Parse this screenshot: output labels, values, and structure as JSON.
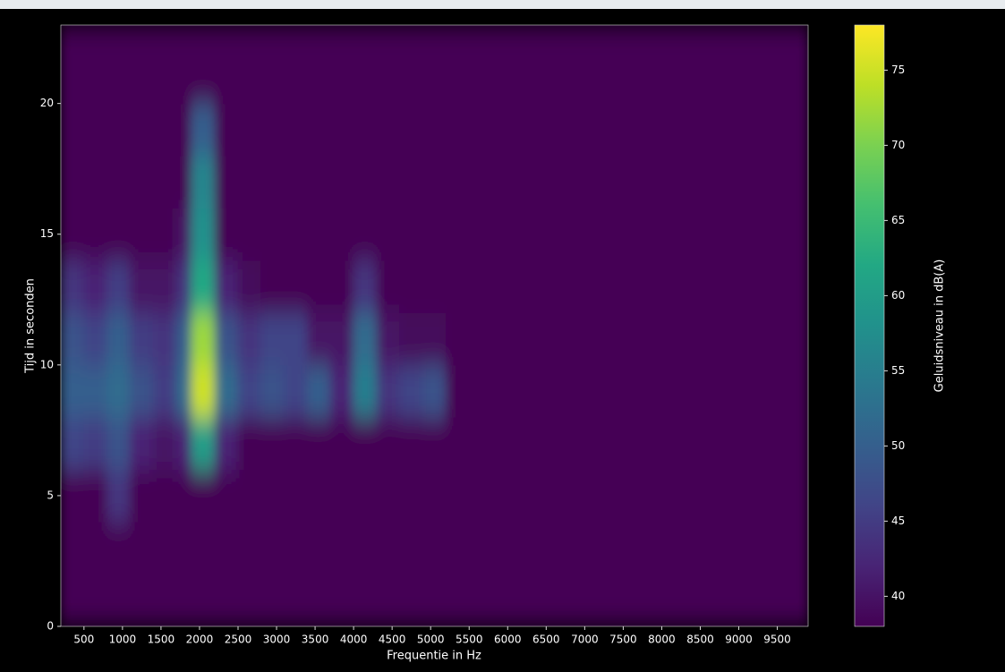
{
  "chart_data": {
    "type": "heatmap",
    "x_label": "Frequentie in Hz",
    "y_label": "Tijd in seconden",
    "colorbar_label": "Geluidsniveau in dB(A)",
    "colormap": "viridis",
    "xbins": [
      200,
      500,
      800,
      1100,
      1400,
      1700,
      1900,
      2200,
      2500,
      2800,
      3100,
      3400,
      3700,
      4000,
      4300,
      4600,
      4900,
      5200,
      5500,
      9900
    ],
    "ybins": [
      0,
      2,
      4,
      6,
      8,
      10,
      12,
      14,
      16,
      18,
      20,
      22,
      23
    ],
    "z": [
      [
        38,
        38,
        38,
        38,
        38,
        38,
        38,
        38,
        38,
        38,
        38,
        38,
        38,
        38,
        38,
        38,
        38,
        38,
        38
      ],
      [
        38,
        38,
        38,
        38,
        38,
        38,
        38,
        38,
        38,
        38,
        38,
        38,
        38,
        38,
        38,
        38,
        38,
        38,
        38
      ],
      [
        38,
        38,
        44,
        38,
        38,
        38,
        38,
        38,
        38,
        38,
        38,
        38,
        38,
        38,
        38,
        38,
        38,
        38,
        38
      ],
      [
        46,
        45,
        48,
        42,
        40,
        42,
        60,
        42,
        38,
        38,
        38,
        38,
        38,
        38,
        38,
        38,
        38,
        38,
        38
      ],
      [
        50,
        50,
        52,
        48,
        45,
        52,
        75,
        52,
        46,
        48,
        46,
        50,
        42,
        55,
        44,
        46,
        48,
        38,
        38
      ],
      [
        48,
        46,
        50,
        45,
        44,
        50,
        72,
        48,
        44,
        46,
        46,
        40,
        40,
        52,
        40,
        39,
        39,
        38,
        38
      ],
      [
        44,
        42,
        45,
        40,
        40,
        44,
        62,
        42,
        39,
        38,
        38,
        38,
        38,
        44,
        38,
        38,
        38,
        38,
        38
      ],
      [
        38,
        38,
        38,
        38,
        38,
        40,
        58,
        38,
        38,
        38,
        38,
        38,
        38,
        38,
        38,
        38,
        38,
        38,
        38
      ],
      [
        38,
        38,
        38,
        38,
        38,
        38,
        56,
        38,
        38,
        38,
        38,
        38,
        38,
        38,
        38,
        38,
        38,
        38,
        38
      ],
      [
        38,
        38,
        38,
        38,
        38,
        38,
        50,
        38,
        38,
        38,
        38,
        38,
        38,
        38,
        38,
        38,
        38,
        38,
        38
      ],
      [
        38,
        38,
        38,
        38,
        38,
        38,
        38,
        38,
        38,
        38,
        38,
        38,
        38,
        38,
        38,
        38,
        38,
        38,
        38
      ],
      [
        38,
        38,
        38,
        38,
        38,
        38,
        38,
        38,
        38,
        38,
        38,
        38,
        38,
        38,
        38,
        38,
        38,
        38,
        38
      ]
    ],
    "xlim": [
      200,
      9900
    ],
    "ylim": [
      0,
      23
    ],
    "zlim": [
      38,
      78
    ],
    "xticks": [
      500,
      1000,
      1500,
      2000,
      2500,
      3000,
      3500,
      4000,
      4500,
      5000,
      5500,
      6000,
      6500,
      7000,
      7500,
      8000,
      8500,
      9000,
      9500
    ],
    "yticks": [
      0,
      5,
      10,
      15,
      20
    ],
    "zticks": [
      40,
      45,
      50,
      55,
      60,
      65,
      70,
      75
    ]
  }
}
